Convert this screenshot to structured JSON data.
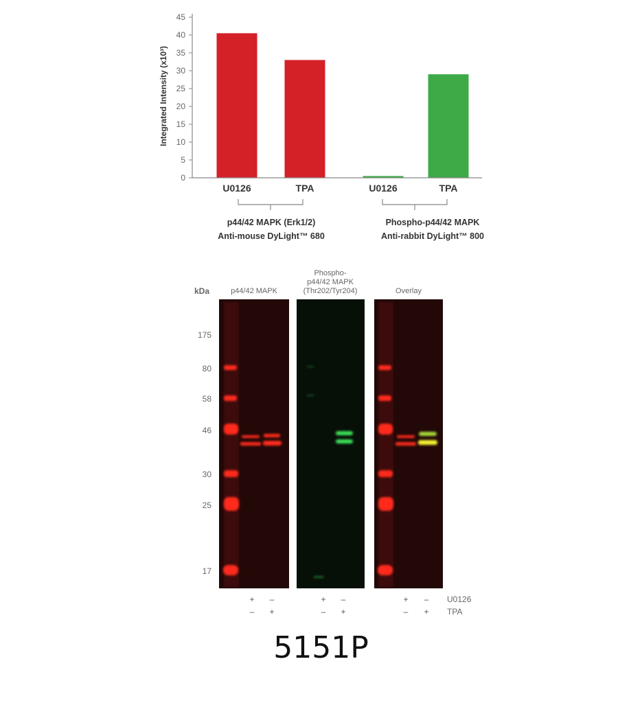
{
  "chart_data": {
    "type": "bar",
    "ylabel": "Integrated Intensity (x10³)",
    "ylim": [
      0,
      45
    ],
    "yticks": [
      0,
      5,
      10,
      15,
      20,
      25,
      30,
      35,
      40,
      45
    ],
    "grid": false,
    "categories": [
      "U0126",
      "TPA",
      "U0126",
      "TPA"
    ],
    "values": [
      40.5,
      33,
      0.5,
      29
    ],
    "bar_colors": [
      "#d42027",
      "#d42027",
      "#3daa47",
      "#3daa47"
    ],
    "groups": [
      {
        "line1": "p44/42 MAPK (Erk1/2)",
        "line2": "Anti-mouse DyLight™ 680"
      },
      {
        "line1": "Phospho-p44/42 MAPK",
        "line2": "Anti-rabbit DyLight™ 800"
      }
    ]
  },
  "blot": {
    "kda_label": "kDa",
    "markers": [
      "175",
      "80",
      "58",
      "46",
      "30",
      "25",
      "17"
    ],
    "panels": [
      {
        "title_lines": [
          "p44/42 MAPK"
        ]
      },
      {
        "title_lines": [
          "Phospho-",
          "p44/42 MAPK",
          "(Thr202/Tyr204)"
        ]
      },
      {
        "title_lines": [
          "Overlay"
        ]
      }
    ],
    "treatments": [
      {
        "name": "U0126",
        "signs": [
          "+",
          "–"
        ]
      },
      {
        "name": "TPA",
        "signs": [
          "–",
          "+"
        ]
      }
    ],
    "colors": {
      "red": "#ff2a1a",
      "green": "#3ee05a",
      "yellow": "#f5f030",
      "background": "#1e0605"
    }
  },
  "product_code": "5151P"
}
